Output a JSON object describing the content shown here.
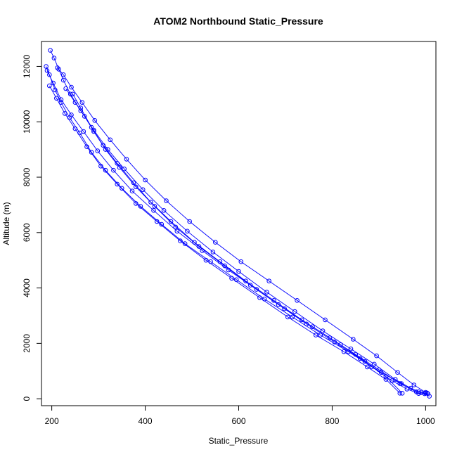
{
  "chart_data": {
    "type": "scatter",
    "title": "ATOM2 Northbound Static_Pressure",
    "xlabel": "Static_Pressure",
    "ylabel": "Altitude (m)",
    "xlim": [
      178,
      1022
    ],
    "ylim": [
      -250,
      12900
    ],
    "xticks": [
      200,
      400,
      600,
      800,
      1000
    ],
    "yticks": [
      0,
      2000,
      4000,
      6000,
      8000,
      10000,
      12000
    ],
    "grid": false,
    "legend": "none",
    "series_color": "#0000ff",
    "marker": "open-circle",
    "connected": true,
    "series": [
      {
        "x": [
          197,
          205,
          215,
          225,
          240,
          262,
          290,
          320,
          355,
          395,
          440,
          490,
          545,
          600,
          660,
          720,
          780,
          840,
          890,
          935,
          968,
          990,
          1000,
          1003
        ],
        "y": [
          12580,
          12300,
          11900,
          11500,
          11000,
          10400,
          9700,
          9000,
          8300,
          7550,
          6800,
          6050,
          5300,
          4600,
          3850,
          3150,
          2450,
          1800,
          1250,
          700,
          380,
          220,
          200,
          210
        ]
      },
      {
        "x": [
          188,
          195,
          207,
          220,
          238,
          260,
          285,
          315,
          350,
          390,
          435,
          485,
          540,
          595,
          655,
          715,
          775,
          835,
          885,
          928,
          960,
          985,
          998,
          1008
        ],
        "y": [
          12000,
          11700,
          11150,
          10700,
          10150,
          9600,
          8900,
          8250,
          7600,
          6950,
          6300,
          5600,
          4950,
          4300,
          3600,
          2950,
          2300,
          1700,
          1150,
          650,
          350,
          190,
          180,
          90
        ]
      },
      {
        "x": [
          195,
          210,
          228,
          250,
          275,
          305,
          340,
          380,
          425,
          475,
          530,
          585,
          645,
          705,
          765,
          825,
          875,
          915,
          945
        ],
        "y": [
          11300,
          10850,
          10300,
          9750,
          9100,
          8400,
          7750,
          7050,
          6400,
          5700,
          5000,
          4350,
          3650,
          2950,
          2300,
          1700,
          1150,
          700,
          200
        ]
      },
      {
        "x": [
          212,
          225,
          242,
          265,
          292,
          325,
          360,
          400,
          445,
          495,
          550,
          605,
          665,
          725,
          785,
          845,
          895,
          940,
          975,
          1000
        ],
        "y": [
          11950,
          11700,
          11250,
          10700,
          10050,
          9350,
          8650,
          7900,
          7150,
          6400,
          5650,
          4950,
          4250,
          3550,
          2850,
          2150,
          1550,
          950,
          500,
          230
        ]
      },
      {
        "x": [
          190,
          203,
          220,
          242,
          268,
          298,
          332,
          372,
          418,
          468,
          522,
          578,
          638,
          698,
          758,
          818,
          870,
          915,
          950
        ],
        "y": [
          11850,
          11400,
          10800,
          10250,
          9650,
          8950,
          8250,
          7500,
          6800,
          6050,
          5350,
          4650,
          3950,
          3250,
          2600,
          1950,
          1350,
          800,
          200
        ]
      },
      {
        "x": [
          230,
          250,
          270,
          290,
          315,
          345,
          380,
          420,
          465,
          515,
          570,
          625,
          685,
          745,
          805,
          860,
          905,
          948,
          985,
          1005
        ],
        "y": [
          11200,
          10700,
          10200,
          9650,
          9000,
          8350,
          7650,
          6950,
          6200,
          5500,
          4800,
          4100,
          3400,
          2700,
          2050,
          1450,
          950,
          550,
          250,
          180
        ]
      },
      {
        "x": [
          245,
          262,
          285,
          310,
          340,
          375,
          412,
          455,
          505,
          560,
          615,
          675,
          735,
          795,
          850,
          900,
          945,
          980
        ],
        "y": [
          11000,
          10500,
          9800,
          9150,
          8500,
          7800,
          7100,
          6400,
          5650,
          4950,
          4250,
          3550,
          2850,
          2200,
          1600,
          1050,
          550,
          250
        ]
      }
    ]
  }
}
